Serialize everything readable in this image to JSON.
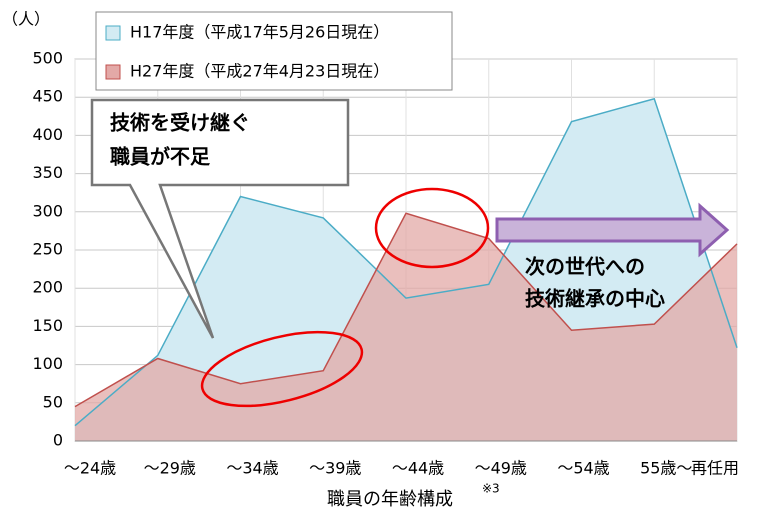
{
  "chart_data": {
    "type": "area",
    "y_label": "（人）",
    "x_label": "職員の年齢構成",
    "x_label_note": "※3",
    "categories": [
      "〜24歳",
      "〜29歳",
      "〜34歳",
      "〜39歳",
      "〜44歳",
      "〜49歳",
      "〜54歳",
      "55歳〜",
      "再任用"
    ],
    "series": [
      {
        "name": "H17年度（平成17年5月26日現在）",
        "color": "#4bacc6",
        "fill": "#d3ebf3",
        "values": [
          20,
          112,
          320,
          292,
          187,
          205,
          418,
          448,
          122
        ]
      },
      {
        "name": "H27年度（平成27年4月23日現在）",
        "color": "#c0504d",
        "fill": "#e3a9a7",
        "values": [
          45,
          108,
          75,
          92,
          298,
          265,
          145,
          153,
          258
        ]
      }
    ],
    "ylim": [
      0,
      500
    ],
    "yticks": [
      0,
      50,
      100,
      150,
      200,
      250,
      300,
      350,
      400,
      450,
      500
    ],
    "grid": true,
    "annotations": [
      "技術を受け継ぐ",
      "職員が不足",
      "次の世代への",
      "技術継承の中心"
    ]
  }
}
